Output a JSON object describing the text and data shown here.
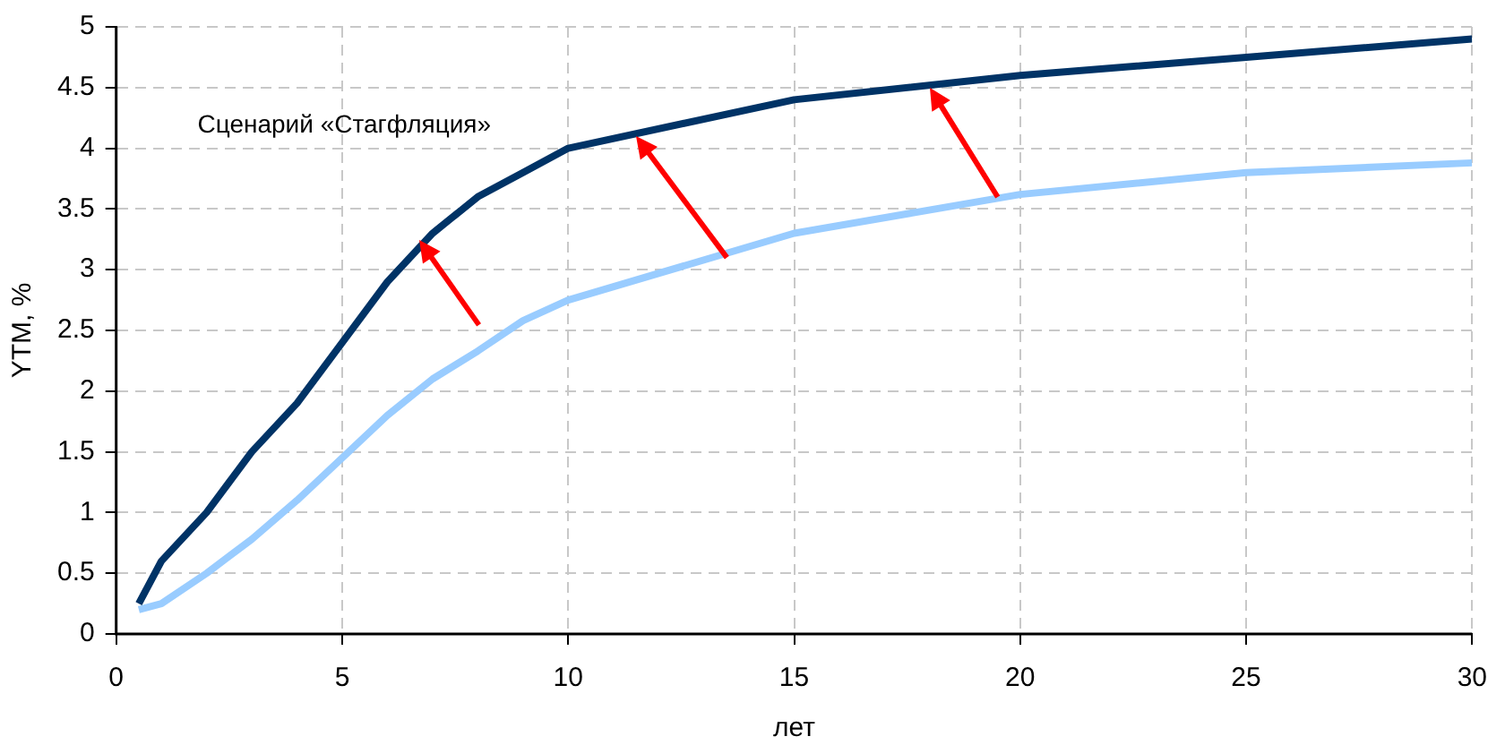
{
  "chart_data": {
    "type": "line",
    "xlabel": "лет",
    "ylabel": "YTM, %",
    "annotations": [
      "Сценарий «Стагфляция»"
    ],
    "xlim": [
      0,
      30
    ],
    "xticks": [
      0,
      5,
      10,
      15,
      20,
      25,
      30
    ],
    "ylim": [
      0,
      5
    ],
    "yticks": [
      0,
      0.5,
      1,
      1.5,
      2,
      2.5,
      3,
      3.5,
      4,
      4.5,
      5
    ],
    "grid": true,
    "legend": false,
    "marker": "none",
    "line_style": "solid",
    "series": [
      {
        "color": "#003366",
        "x": [
          0.5,
          1,
          2,
          3,
          4,
          5,
          6,
          7,
          8,
          9,
          10,
          15,
          20,
          25,
          30
        ],
        "values": [
          0.25,
          0.6,
          1.0,
          1.5,
          1.9,
          2.4,
          2.9,
          3.3,
          3.6,
          3.8,
          4.0,
          4.4,
          4.6,
          4.75,
          4.9
        ]
      },
      {
        "color": "#99ccff",
        "x": [
          0.5,
          1,
          2,
          3,
          4,
          5,
          6,
          7,
          8,
          9,
          10,
          15,
          20,
          25,
          30
        ],
        "values": [
          0.2,
          0.25,
          0.5,
          0.78,
          1.1,
          1.45,
          1.8,
          2.1,
          2.33,
          2.58,
          2.75,
          3.3,
          3.62,
          3.8,
          3.88
        ]
      }
    ]
  }
}
